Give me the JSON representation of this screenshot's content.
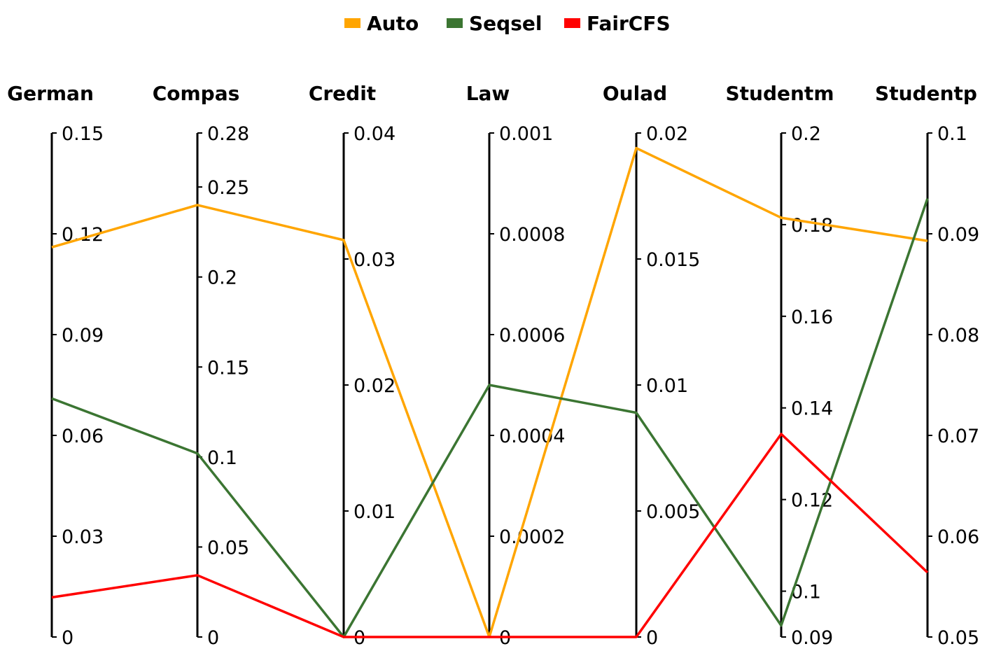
{
  "chart_data": {
    "type": "parallel-coordinates",
    "title": "",
    "legend": {
      "position": "top-center"
    },
    "series": [
      {
        "name": "Auto",
        "color": "#FFA500",
        "values": [
          0.116,
          0.24,
          0.0315,
          0.0,
          0.0194,
          0.1815,
          0.0893
        ]
      },
      {
        "name": "Seqsel",
        "color": "#3B7532",
        "values": [
          0.071,
          0.102,
          0.0,
          0.0005,
          0.0089,
          0.0925,
          0.0935
        ]
      },
      {
        "name": "FairCFS",
        "color": "#FF0000",
        "values": [
          0.0118,
          0.0343,
          0.0,
          0.0,
          0.0,
          0.1343,
          0.0564
        ]
      }
    ],
    "axes": [
      {
        "name": "German",
        "range": [
          0,
          0.15
        ],
        "ticks": [
          0,
          0.03,
          0.06,
          0.09,
          0.12,
          0.15
        ],
        "tick_labels": [
          "0",
          "0.03",
          "0.06",
          "0.09",
          "0.12",
          "0.15"
        ]
      },
      {
        "name": "Compas",
        "range": [
          0,
          0.28
        ],
        "ticks": [
          0,
          0.05,
          0.1,
          0.15,
          0.2,
          0.25,
          0.28
        ],
        "tick_labels": [
          "0",
          "0.05",
          "0.1",
          "0.15",
          "0.2",
          "0.25",
          "0.28"
        ]
      },
      {
        "name": "Credit",
        "range": [
          0,
          0.04
        ],
        "ticks": [
          0,
          0.01,
          0.02,
          0.03,
          0.04
        ],
        "tick_labels": [
          "0",
          "0.01",
          "0.02",
          "0.03",
          "0.04"
        ]
      },
      {
        "name": "Law",
        "range": [
          0,
          0.001
        ],
        "ticks": [
          0,
          0.0002,
          0.0004,
          0.0006,
          0.0008,
          0.001
        ],
        "tick_labels": [
          "0",
          "0.0002",
          "0.0004",
          "0.0006",
          "0.0008",
          "0.001"
        ]
      },
      {
        "name": "Oulad",
        "range": [
          0,
          0.02
        ],
        "ticks": [
          0,
          0.005,
          0.01,
          0.015,
          0.02
        ],
        "tick_labels": [
          "0",
          "0.005",
          "0.01",
          "0.015",
          "0.02"
        ]
      },
      {
        "name": "Studentm",
        "range": [
          0.09,
          0.2
        ],
        "ticks": [
          0.09,
          0.1,
          0.12,
          0.14,
          0.16,
          0.18,
          0.2
        ],
        "tick_labels": [
          "0.09",
          "0.1",
          "0.12",
          "0.14",
          "0.16",
          "0.18",
          "0.2"
        ]
      },
      {
        "name": "Studentp",
        "range": [
          0.05,
          0.1
        ],
        "ticks": [
          0.05,
          0.06,
          0.07,
          0.08,
          0.09,
          0.1
        ],
        "tick_labels": [
          "0.05",
          "0.06",
          "0.07",
          "0.08",
          "0.09",
          "0.1"
        ]
      }
    ]
  }
}
